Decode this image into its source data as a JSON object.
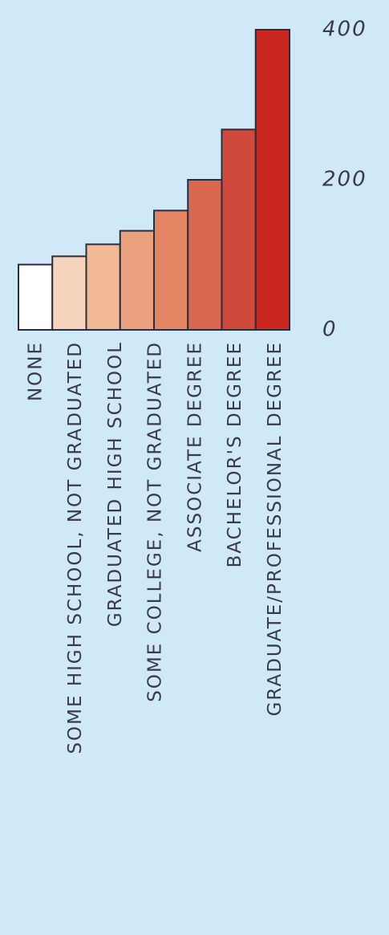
{
  "chart_data": {
    "type": "bar",
    "categories": [
      "NONE",
      "SOME HIGH SCHOOL, NOT GRADUATED",
      "GRADUATED HIGH SCHOOL",
      "SOME COLLEGE, NOT GRADUATED",
      null,
      "ASSOCIATE DEGREE",
      "BACHELOR'S DEGREE",
      "GRADUATE/PROFESSIONAL DEGREE"
    ],
    "values": [
      87,
      98,
      114,
      132,
      159,
      200,
      267,
      400
    ],
    "colors": [
      "#ffffff",
      "#f7d5bc",
      "#f1b996",
      "#eba17e",
      "#e48564",
      "#da6750",
      "#d04a3b",
      "#c9261e"
    ],
    "ylim": [
      0,
      400
    ],
    "yticks": [
      0,
      200,
      400
    ]
  }
}
